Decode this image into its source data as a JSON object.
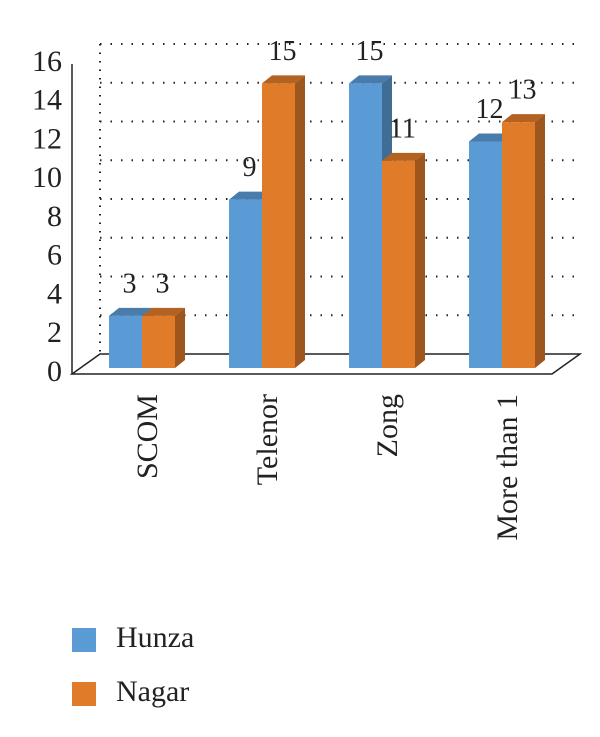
{
  "chart_data": {
    "type": "bar3d",
    "categories": [
      "SCOM",
      "Telenor",
      "Zong",
      "More than 1"
    ],
    "series": [
      {
        "name": "Hunza",
        "color": "#5b9bd5",
        "values": [
          3,
          9,
          15,
          12
        ]
      },
      {
        "name": "Nagar",
        "color": "#e07b2a",
        "values": [
          3,
          15,
          11,
          13
        ]
      }
    ],
    "ylim": [
      0,
      16
    ],
    "yticks": [
      0,
      2,
      4,
      6,
      8,
      10,
      12,
      14,
      16
    ],
    "grid": true,
    "legend": "bottom"
  }
}
